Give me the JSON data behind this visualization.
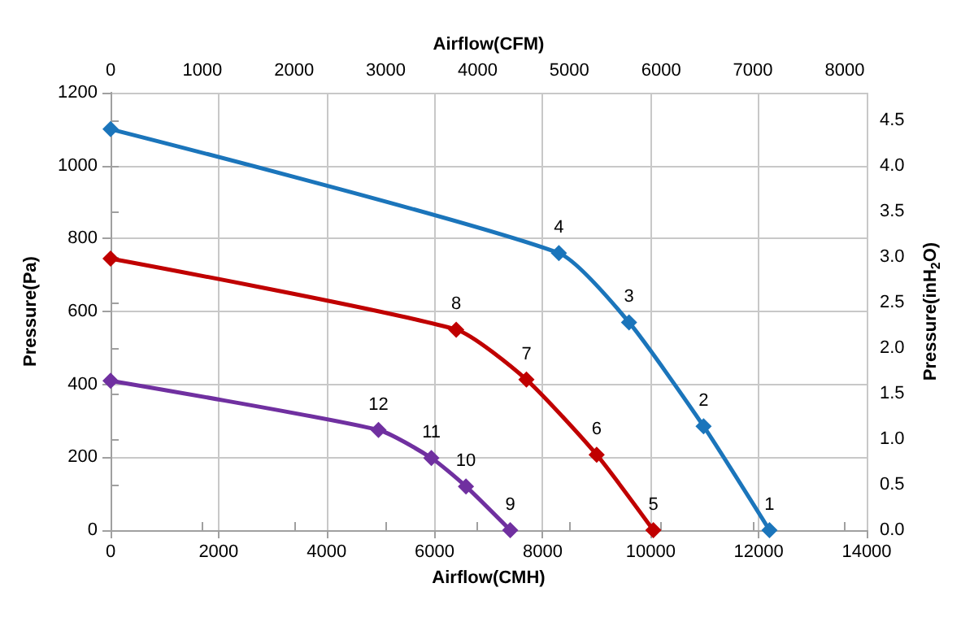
{
  "chart_data": {
    "type": "line",
    "xlabel": "Airflow(CMH)",
    "ylabel": "Pressure(Pa)",
    "x2label": "Airflow(CFM)",
    "y2label": "Pressure(inH$_{2}$O)",
    "xlim": [
      0,
      14000
    ],
    "xticks": [
      0,
      2000,
      4000,
      6000,
      8000,
      10000,
      12000,
      14000
    ],
    "ylim": [
      0,
      1200
    ],
    "yticks": [
      0,
      200,
      400,
      600,
      800,
      1000,
      1200
    ],
    "x2lim": [
      0,
      8240
    ],
    "x2ticks": [
      0,
      1000,
      2000,
      3000,
      4000,
      5000,
      6000,
      7000,
      8000
    ],
    "y2lim": [
      0,
      4.8
    ],
    "y2ticks": [
      {
        "value": 0,
        "label": "0.0"
      },
      {
        "value": 0.5,
        "label": "0.5"
      },
      {
        "value": 1,
        "label": "1.0"
      },
      {
        "value": 1.5,
        "label": "1.5"
      },
      {
        "value": 2,
        "label": "2.0"
      },
      {
        "value": 2.5,
        "label": "2.5"
      },
      {
        "value": 3,
        "label": "3.0"
      },
      {
        "value": 3.5,
        "label": "3.5"
      },
      {
        "value": 4,
        "label": "4.0"
      },
      {
        "value": 4.5,
        "label": "4.5"
      }
    ],
    "grid": true,
    "marker": "diamond",
    "line_style": "solid",
    "annotations": [
      {
        "text": "1",
        "x": 12200,
        "y": 0
      },
      {
        "text": "2",
        "x": 10980,
        "y": 285
      },
      {
        "text": "3",
        "x": 9600,
        "y": 570
      },
      {
        "text": "4",
        "x": 8300,
        "y": 760
      },
      {
        "text": "5",
        "x": 10050,
        "y": 0
      },
      {
        "text": "6",
        "x": 9000,
        "y": 207
      },
      {
        "text": "7",
        "x": 7700,
        "y": 413
      },
      {
        "text": "8",
        "x": 6400,
        "y": 550
      },
      {
        "text": "9",
        "x": 7400,
        "y": 0
      },
      {
        "text": "10",
        "x": 6580,
        "y": 120
      },
      {
        "text": "11",
        "x": 5940,
        "y": 198
      },
      {
        "text": "12",
        "x": 4960,
        "y": 275
      }
    ],
    "series": [
      {
        "color": "#1b75bb",
        "x": [
          0,
          8300,
          9600,
          10980,
          12200
        ],
        "values": [
          1100,
          760,
          570,
          285,
          0
        ]
      },
      {
        "color": "#c00000",
        "x": [
          0,
          6400,
          7700,
          9000,
          10050
        ],
        "values": [
          745,
          550,
          413,
          207,
          0
        ]
      },
      {
        "color": "#7030a0",
        "x": [
          0,
          4960,
          5940,
          6580,
          7400
        ],
        "values": [
          410,
          275,
          198,
          120,
          0
        ]
      }
    ]
  }
}
